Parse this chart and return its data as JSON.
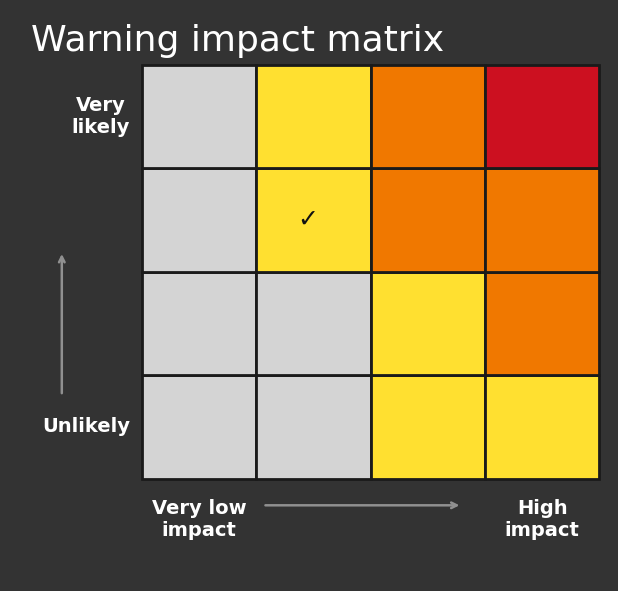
{
  "title": "Warning impact matrix",
  "title_color": "#ffffff",
  "title_fontsize": 26,
  "background_color": "#333333",
  "grid_colors": [
    [
      "#d4d4d4",
      "#d4d4d4",
      "#ffe030",
      "#ffe030"
    ],
    [
      "#d4d4d4",
      "#d4d4d4",
      "#ffe030",
      "#f07800"
    ],
    [
      "#d4d4d4",
      "#ffe030",
      "#f07800",
      "#f07800"
    ],
    [
      "#d4d4d4",
      "#ffe030",
      "#f07800",
      "#cc1020"
    ]
  ],
  "checkmark_row": 2,
  "checkmark_col": 1,
  "checkmark_char": "✓",
  "ylabel_top": "Very\nlikely",
  "ylabel_bottom": "Unlikely",
  "xlabel_left": "Very low\nimpact",
  "xlabel_right": "High\nimpact",
  "cell_edge_color": "#1a1a1a",
  "cell_linewidth": 2.0,
  "label_color": "#ffffff",
  "label_fontsize": 14,
  "arrow_color": "#909090",
  "checkmark_color": "#111111",
  "checkmark_fontsize": 18
}
